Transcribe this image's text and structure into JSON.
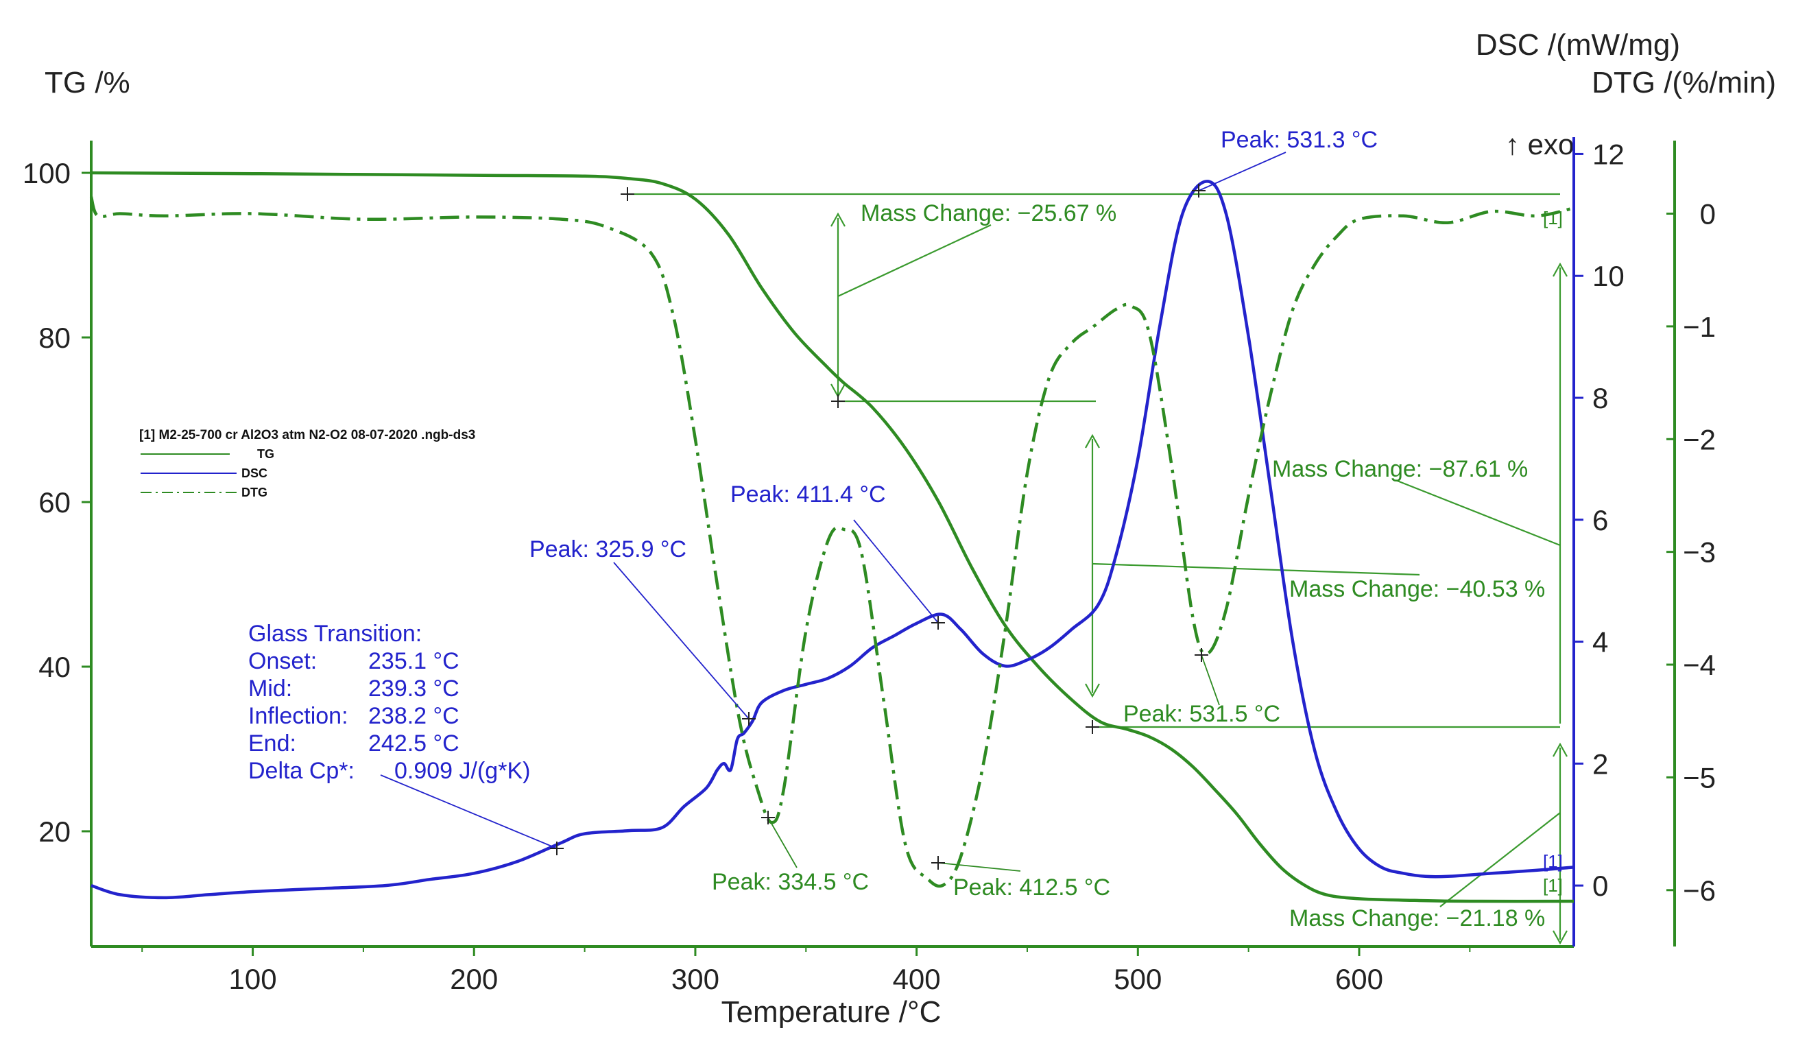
{
  "chart_data": {
    "type": "line",
    "xlabel": "Temperature /°C",
    "xlim": [
      27,
      697
    ],
    "x_ticks": [
      "100",
      "200",
      "300",
      "400",
      "500",
      "600"
    ],
    "x_tick_values": [
      100,
      200,
      300,
      400,
      500,
      600
    ],
    "axes": {
      "tg": {
        "label": "TG /%",
        "ylim": [
          6,
          106
        ],
        "ticks": [
          "20",
          "40",
          "60",
          "80",
          "100"
        ],
        "tick_values": [
          20,
          40,
          60,
          80,
          100
        ],
        "color": "#2e8b22"
      },
      "dsc": {
        "label": "DSC /(mW/mg)",
        "ylim": [
          -1.0,
          12.5
        ],
        "ticks": [
          "0",
          "2",
          "4",
          "6",
          "8",
          "10",
          "12"
        ],
        "tick_values": [
          0,
          2,
          4,
          6,
          8,
          10,
          12
        ],
        "color": "#2323cc",
        "exo_label": "↑ exo"
      },
      "dtg": {
        "label": "DTG /(%/min)",
        "ylim": [
          -6.5,
          0.8
        ],
        "ticks": [
          "0",
          "−1",
          "−2",
          "−3",
          "−4",
          "−5",
          "−6"
        ],
        "tick_values": [
          0,
          -1,
          -2,
          -3,
          -4,
          -5,
          -6
        ],
        "color": "#2e8b22"
      }
    },
    "legend": {
      "title": "[1] M2-25-700 cr Al2O3 atm N2-O2 08-07-2020 .ngb-ds3",
      "entries": [
        "TG",
        "DSC",
        "DTG"
      ],
      "position": "left"
    },
    "series": [
      {
        "name": "TG",
        "axis": "tg",
        "style": "solid",
        "color": "#2e8b22",
        "x": [
          27,
          100,
          200,
          250,
          270,
          285,
          300,
          315,
          330,
          345,
          360,
          367,
          380,
          395,
          410,
          425,
          440,
          455,
          470,
          483,
          495,
          505,
          515,
          525,
          535,
          545,
          555,
          565,
          575,
          585,
          600,
          625,
          650,
          697
        ],
        "y": [
          100,
          99.9,
          99.7,
          99.6,
          99.3,
          98.7,
          96.8,
          92.5,
          86,
          80.5,
          76.3,
          74.5,
          71.5,
          66.5,
          60,
          52,
          45,
          40,
          36,
          33.3,
          32.4,
          31.5,
          30,
          27.8,
          25,
          22,
          18.5,
          15.5,
          13.5,
          12.3,
          11.8,
          11.6,
          11.5,
          11.5
        ]
      },
      {
        "name": "DSC",
        "axis": "dsc",
        "style": "solid",
        "color": "#2323cc",
        "x": [
          27,
          40,
          60,
          80,
          100,
          130,
          160,
          180,
          200,
          220,
          239.3,
          250,
          270,
          285,
          295,
          305,
          310,
          313,
          316,
          319,
          322,
          325.9,
          330,
          340,
          350,
          360,
          370,
          380,
          390,
          400,
          411.4,
          420,
          430,
          440,
          450,
          460,
          470,
          482,
          490,
          500,
          510,
          520,
          531.3,
          540,
          550,
          560,
          570,
          580,
          590,
          600,
          610,
          620,
          630,
          640,
          660,
          680,
          697
        ],
        "y": [
          0,
          -0.15,
          -0.2,
          -0.15,
          -0.1,
          -0.05,
          0,
          0.1,
          0.2,
          0.4,
          0.7,
          0.85,
          0.9,
          0.95,
          1.3,
          1.6,
          1.9,
          2.0,
          1.9,
          2.4,
          2.5,
          2.7,
          3.0,
          3.2,
          3.3,
          3.4,
          3.6,
          3.9,
          4.1,
          4.3,
          4.45,
          4.2,
          3.8,
          3.6,
          3.7,
          3.9,
          4.2,
          4.6,
          5.4,
          7.0,
          9.2,
          11.0,
          11.55,
          11.0,
          9.0,
          6.5,
          4.0,
          2.2,
          1.2,
          0.6,
          0.3,
          0.2,
          0.15,
          0.15,
          0.2,
          0.25,
          0.3
        ]
      },
      {
        "name": "DTG",
        "axis": "dtg",
        "style": "dashdot",
        "color": "#2e8b22",
        "x": [
          27,
          30,
          40,
          60,
          100,
          150,
          200,
          240,
          260,
          280,
          290,
          300,
          310,
          320,
          328,
          334.5,
          340,
          350,
          360,
          367,
          375,
          385,
          395,
          405,
          412.5,
          420,
          430,
          440,
          450,
          460,
          470,
          480,
          490,
          497,
          505,
          515,
          525,
          531.5,
          540,
          550,
          560,
          570,
          580,
          590,
          600,
          620,
          640,
          660,
          680,
          697
        ],
        "y": [
          0.15,
          -0.02,
          0.0,
          -0.02,
          0.0,
          -0.05,
          -0.03,
          -0.05,
          -0.12,
          -0.35,
          -0.9,
          -2.0,
          -3.3,
          -4.5,
          -5.1,
          -5.4,
          -5.1,
          -3.7,
          -2.9,
          -2.8,
          -3.0,
          -4.3,
          -5.6,
          -5.9,
          -5.95,
          -5.7,
          -4.9,
          -3.7,
          -2.3,
          -1.45,
          -1.15,
          -1.0,
          -0.85,
          -0.82,
          -1.05,
          -2.2,
          -3.6,
          -3.9,
          -3.5,
          -2.5,
          -1.6,
          -0.85,
          -0.45,
          -0.2,
          -0.05,
          -0.02,
          -0.08,
          0.02,
          -0.02,
          0.05
        ]
      }
    ],
    "annotations": {
      "peak_dsc_531": "Peak: 531.3 °C",
      "peak_dsc_411": "Peak: 411.4 °C",
      "peak_dsc_325": "Peak: 325.9 °C",
      "peak_dtg_334": "Peak: 334.5 °C",
      "peak_dtg_412": "Peak: 412.5 °C",
      "peak_dtg_531": "Peak: 531.5 °C",
      "mass_change_1": "Mass Change: −25.67 %",
      "mass_change_2": "Mass Change: −40.53 %",
      "mass_change_3": "Mass Change: −21.18 %",
      "mass_change_total": "Mass Change: −87.61 %",
      "curve_tag_1": "[1]",
      "curve_tag_2": "[1]",
      "curve_tag_3": "[1]",
      "glass_transition": {
        "title": "Glass Transition:",
        "onset_label": "Onset:",
        "onset_value": "235.1 °C",
        "mid_label": "Mid:",
        "mid_value": "239.3 °C",
        "inflection_label": "Inflection:",
        "inflection_value": "238.2 °C",
        "end_label": "End:",
        "end_value": "242.5 °C",
        "deltacp_label": "Delta Cp*:",
        "deltacp_value": "0.909 J/(g*K)"
      }
    }
  }
}
